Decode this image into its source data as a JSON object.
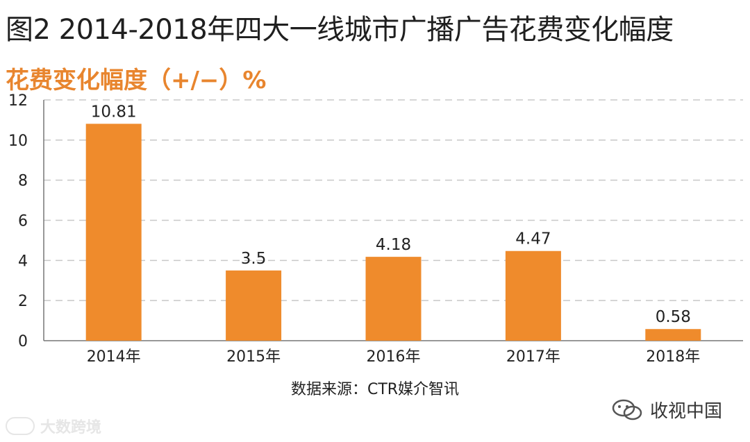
{
  "title": "图2 2014-2018年四大一线城市广播广告花费变化幅度",
  "source": "数据来源：CTR媒介智讯",
  "watermark_left": "大数跨境",
  "watermark_right": "收视中国",
  "colors": {
    "bar": "#ef8b2c",
    "ylabel": "#e8852e",
    "grid": "#c8c8c8"
  },
  "chart_data": {
    "type": "bar",
    "title": "图2 2014-2018年四大一线城市广播广告花费变化幅度",
    "ylabel": "花费变化幅度（+/−）%",
    "xlabel": "",
    "categories": [
      "2014年",
      "2015年",
      "2016年",
      "2017年",
      "2018年"
    ],
    "values": [
      10.81,
      3.5,
      4.18,
      4.47,
      0.58
    ],
    "data_labels": [
      "10.81",
      "3.5",
      "4.18",
      "4.47",
      "0.58"
    ],
    "ylim": [
      0,
      12
    ],
    "yticks": [
      0,
      2,
      4,
      6,
      8,
      10,
      12
    ],
    "grid": true,
    "grid_style": "dashed",
    "legend": "none"
  }
}
